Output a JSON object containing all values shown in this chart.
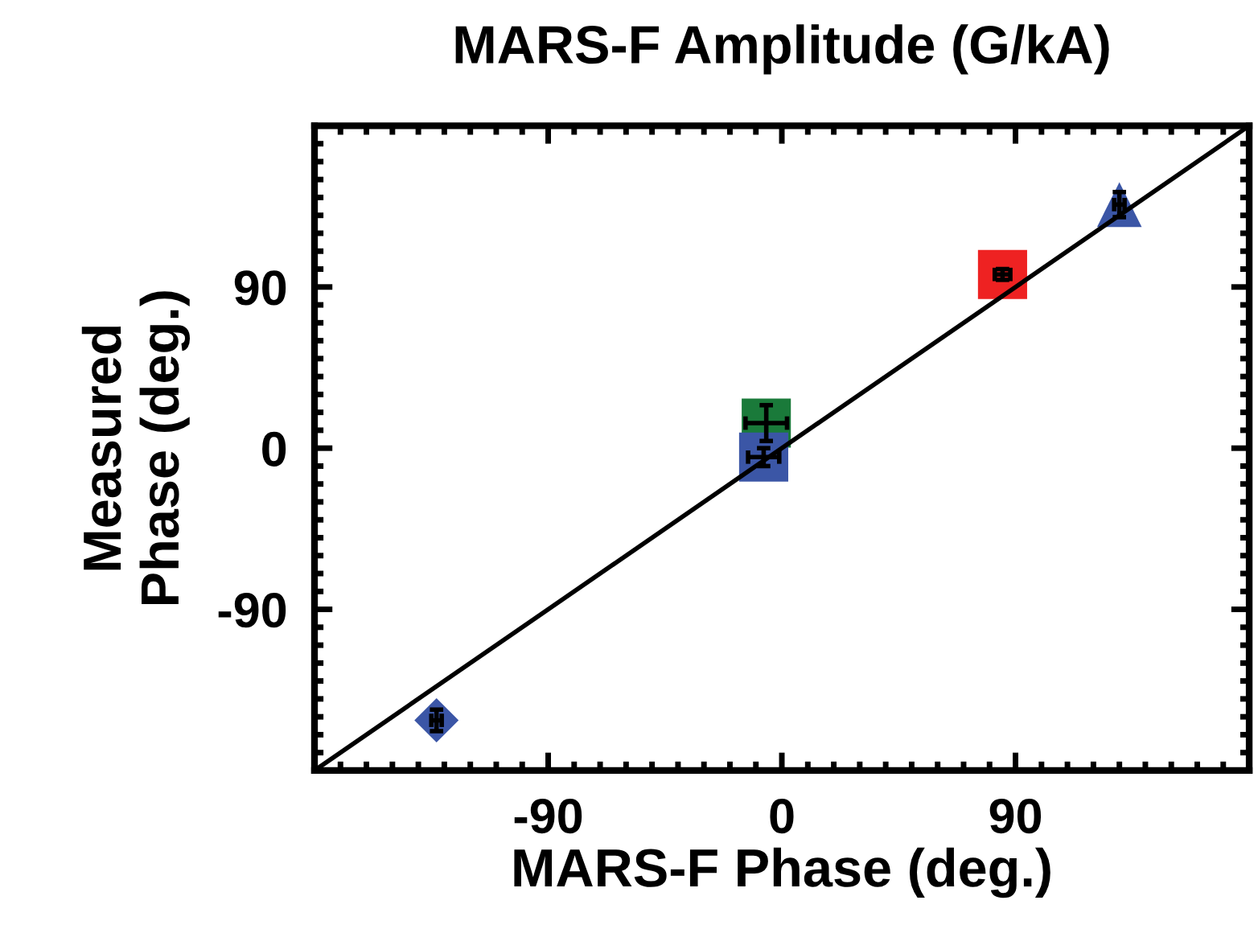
{
  "chart_data": {
    "type": "scatter",
    "title": "MARS-F Amplitude (G/kA)",
    "xlabel": "MARS-F Phase (deg.)",
    "ylabel": "Measured\nPhase (deg.)",
    "xlim": [
      -180,
      180
    ],
    "ylim": [
      -180,
      180
    ],
    "xticks": [
      -90,
      0,
      90
    ],
    "yticks": [
      -90,
      0,
      90
    ],
    "grid": false,
    "legend": false,
    "series": [
      {
        "color": "#3b56a6",
        "marker": "diamond",
        "x": [
          -133
        ],
        "values": [
          -152
        ],
        "errors": [
          6
        ],
        "xerrors": [
          2
        ]
      },
      {
        "color": "#1a7a3a",
        "marker": "square",
        "x": [
          -6
        ],
        "values": [
          14
        ],
        "errors": [
          10
        ],
        "xerrors": [
          8
        ]
      },
      {
        "color": "#3b56a6",
        "marker": "square",
        "x": [
          -7
        ],
        "values": [
          -5
        ],
        "errors": [
          5
        ],
        "xerrors": [
          6
        ]
      },
      {
        "color": "#ee2222",
        "marker": "square",
        "x": [
          85
        ],
        "values": [
          97
        ],
        "errors": [
          3
        ],
        "xerrors": [
          3
        ]
      },
      {
        "color": "#3b56a6",
        "marker": "triangle",
        "x": [
          130
        ],
        "values": [
          136
        ],
        "errors": [
          7
        ],
        "xerrors": [
          2
        ]
      },
      {
        "type": "line",
        "color": "#000000",
        "marker": "none",
        "x": [
          -180,
          180
        ],
        "values": [
          -180,
          180
        ]
      }
    ]
  }
}
